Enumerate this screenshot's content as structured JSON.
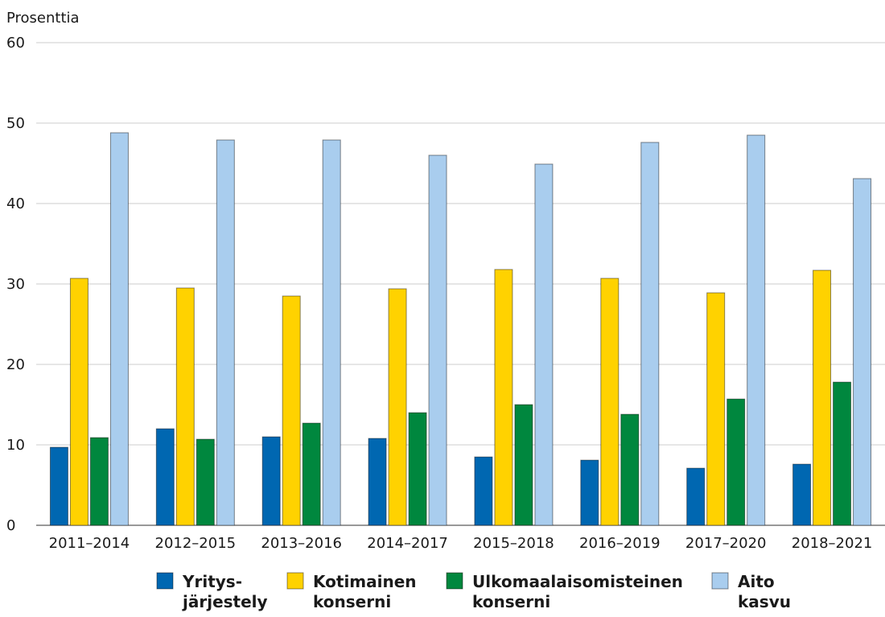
{
  "chart_data": {
    "type": "bar",
    "y_label": "Prosenttia",
    "categories": [
      "2011–2014",
      "2012–2015",
      "2013–2016",
      "2014–2017",
      "2015–2018",
      "2016–2019",
      "2017–2020",
      "2018–2021"
    ],
    "series": [
      {
        "name": "Yritys-\njärjestely",
        "color": "#0067b1",
        "values": [
          9.7,
          12.0,
          11.0,
          10.8,
          8.5,
          8.1,
          7.1,
          7.6
        ]
      },
      {
        "name": "Kotimainen\nkonserni",
        "color": "#ffd200",
        "values": [
          30.7,
          29.5,
          28.5,
          29.4,
          31.8,
          30.7,
          28.9,
          31.7
        ]
      },
      {
        "name": "Ulkomaalaisomisteinen\nkonserni",
        "color": "#00873e",
        "values": [
          10.9,
          10.7,
          12.7,
          14.0,
          15.0,
          13.8,
          15.7,
          17.8
        ]
      },
      {
        "name": "Aito\nkasvu",
        "color": "#a9cdee",
        "values": [
          48.8,
          47.9,
          47.9,
          46.0,
          44.9,
          47.6,
          48.5,
          43.1
        ]
      }
    ],
    "ylim": [
      0,
      60
    ],
    "yticks": [
      0,
      10,
      20,
      30,
      40,
      50,
      60
    ],
    "grid": true
  }
}
